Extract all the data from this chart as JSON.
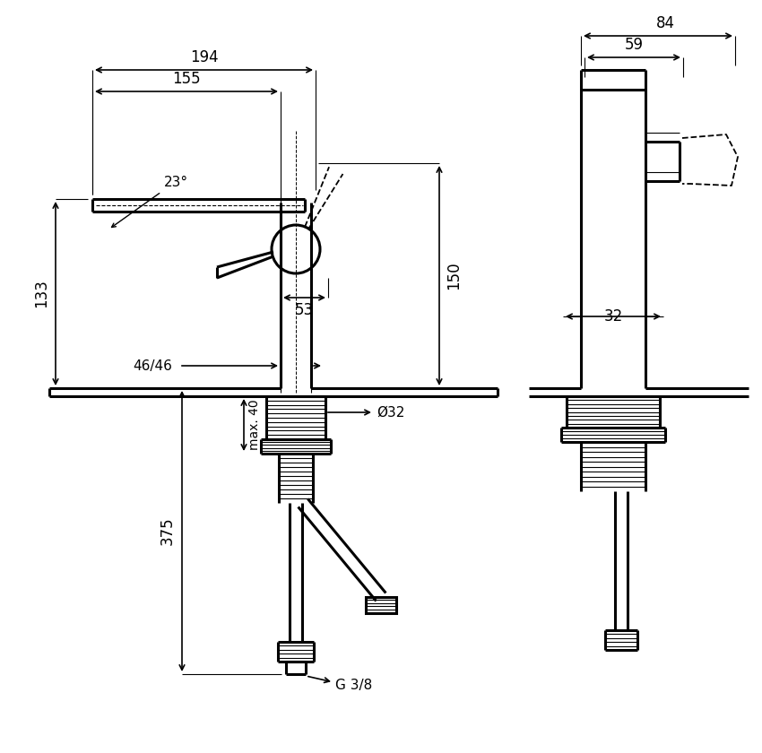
{
  "bg_color": "#ffffff",
  "line_color": "#000000",
  "dim_color": "#000000",
  "font_size": 11,
  "dimensions": {
    "d194": "194",
    "d155": "155",
    "d133": "133",
    "d150": "150",
    "d53": "53",
    "d46": "46/46",
    "d32_dia": "Ø32",
    "d375": "375",
    "dmax40": "max. 40",
    "dg38": "G 3/8",
    "d23": "23°",
    "d84": "84",
    "d59": "59",
    "d32": "32"
  }
}
